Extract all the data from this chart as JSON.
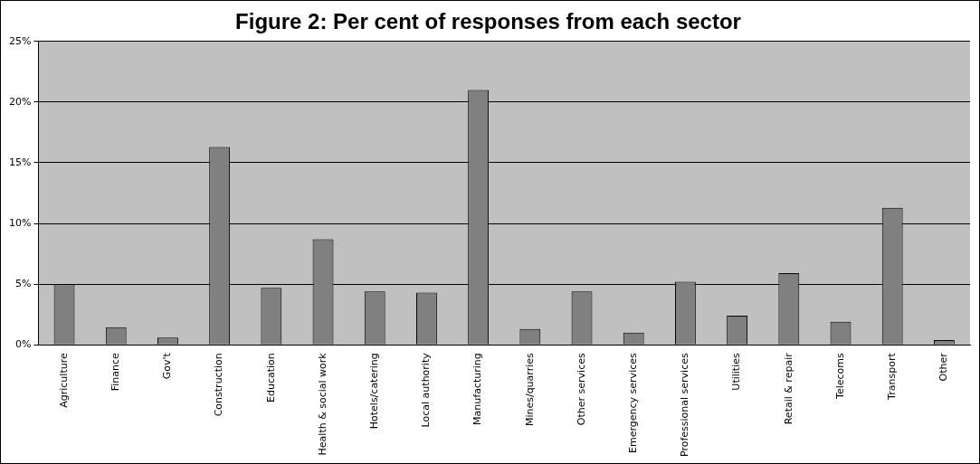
{
  "chart_data": {
    "type": "bar",
    "title": "Figure 2: Per cent of responses from each sector",
    "categories": [
      "Agriculture",
      "Finance",
      "Gov't",
      "Construction",
      "Education",
      "Health & social work",
      "Hotels/catering",
      "Local authority",
      "Manufacturing",
      "Mines/quarries",
      "Other services",
      "Emergency services",
      "Professional services",
      "Utilities",
      "Retail & repair",
      "Telecoms",
      "Transport",
      "Other"
    ],
    "values": [
      5.0,
      1.45,
      0.6,
      16.3,
      4.7,
      8.7,
      4.4,
      4.3,
      21.0,
      1.3,
      4.4,
      1.0,
      5.2,
      2.4,
      5.9,
      1.9,
      11.3,
      0.4
    ],
    "color": "#808080",
    "ylim": [
      0,
      25
    ],
    "yticks": [
      {
        "value": 0,
        "label": "0%"
      },
      {
        "value": 5,
        "label": "5%"
      },
      {
        "value": 10,
        "label": "10%"
      },
      {
        "value": 15,
        "label": "15%"
      },
      {
        "value": 20,
        "label": "20%"
      },
      {
        "value": 25,
        "label": "25%"
      }
    ],
    "grid": "y"
  }
}
